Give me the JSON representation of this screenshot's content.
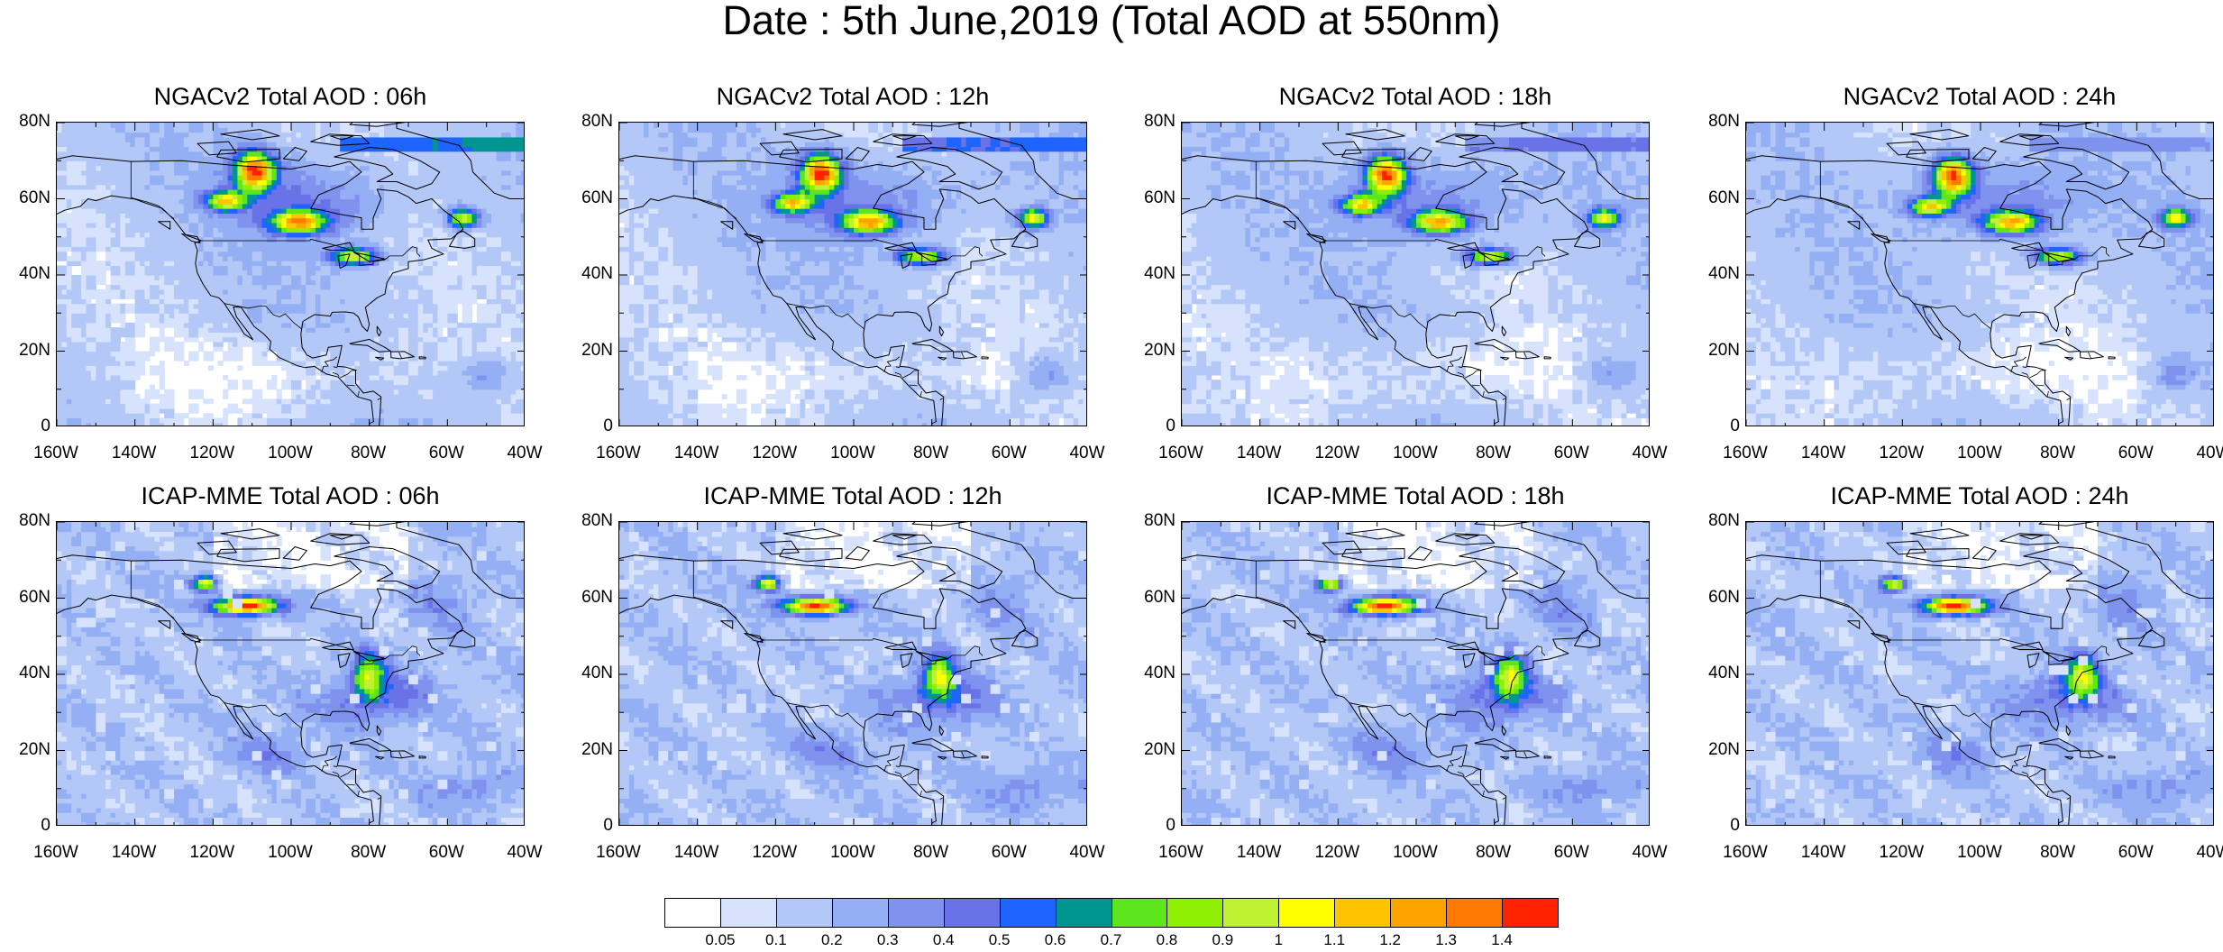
{
  "title": "Date : 5th June,2019 (Total AOD at 550nm)",
  "panels": [
    {
      "id": "ngac-06h",
      "title": "NGACv2 Total AOD : 06h",
      "model": "ngac",
      "hour": 6
    },
    {
      "id": "ngac-12h",
      "title": "NGACv2 Total AOD : 12h",
      "model": "ngac",
      "hour": 12
    },
    {
      "id": "ngac-18h",
      "title": "NGACv2 Total AOD : 18h",
      "model": "ngac",
      "hour": 18
    },
    {
      "id": "ngac-24h",
      "title": "NGACv2 Total AOD : 24h",
      "model": "ngac",
      "hour": 24
    },
    {
      "id": "icap-06h",
      "title": "ICAP-MME Total AOD : 06h",
      "model": "icap",
      "hour": 6
    },
    {
      "id": "icap-12h",
      "title": "ICAP-MME Total AOD : 12h",
      "model": "icap",
      "hour": 12
    },
    {
      "id": "icap-18h",
      "title": "ICAP-MME Total AOD : 18h",
      "model": "icap",
      "hour": 18
    },
    {
      "id": "icap-24h",
      "title": "ICAP-MME Total AOD : 24h",
      "model": "icap",
      "hour": 24
    }
  ],
  "axes": {
    "lon_range": [
      -160,
      -40
    ],
    "lat_range": [
      0,
      80
    ],
    "lat_ticks": [
      {
        "value": 0,
        "label": "0"
      },
      {
        "value": 20,
        "label": "20N"
      },
      {
        "value": 40,
        "label": "40N"
      },
      {
        "value": 60,
        "label": "60N"
      },
      {
        "value": 80,
        "label": "80N"
      }
    ],
    "lon_ticks": [
      {
        "value": -160,
        "label": "160W"
      },
      {
        "value": -140,
        "label": "140W"
      },
      {
        "value": -120,
        "label": "120W"
      },
      {
        "value": -100,
        "label": "100W"
      },
      {
        "value": -80,
        "label": "80W"
      },
      {
        "value": -60,
        "label": "60W"
      },
      {
        "value": -40,
        "label": "40W"
      }
    ]
  },
  "colorbar": {
    "colors": [
      "#ffffff",
      "#d7e3fc",
      "#b4c8f8",
      "#94aff4",
      "#7f93ee",
      "#6a72e8",
      "#1e64ff",
      "#00958e",
      "#5ee61c",
      "#8ef000",
      "#bef232",
      "#ffff00",
      "#ffc400",
      "#ffa300",
      "#ff7a00",
      "#ff2200"
    ],
    "labels": [
      "0.05",
      "0.1",
      "0.2",
      "0.3",
      "0.4",
      "0.5",
      "0.6",
      "0.7",
      "0.8",
      "0.9",
      "1",
      "1.1",
      "1.2",
      "1.3",
      "1.4"
    ]
  }
}
